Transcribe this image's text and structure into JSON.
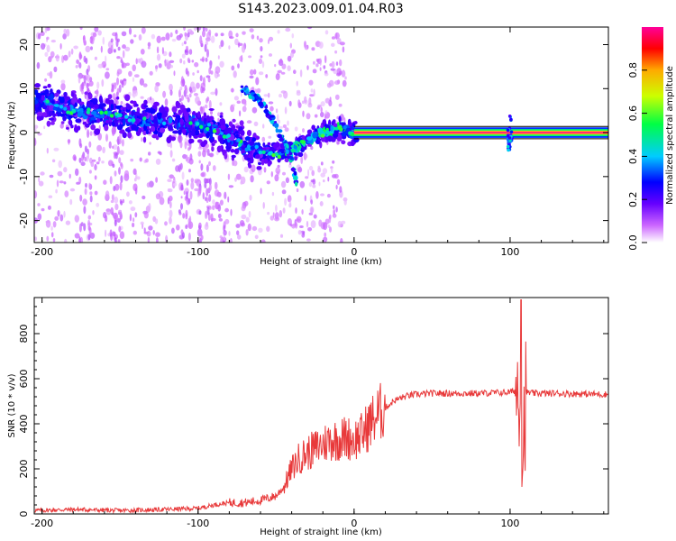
{
  "chart_data": [
    {
      "type": "heatmap",
      "title": "S143.2023.009.01.04.R03",
      "xlabel": "Height of straight line (km)",
      "ylabel": "Frequency (Hz)",
      "xlim": [
        -205,
        163
      ],
      "ylim": [
        -25,
        24
      ],
      "x_ticks": [
        -200,
        -100,
        0,
        100
      ],
      "y_ticks": [
        20,
        10,
        0,
        -10,
        -20
      ],
      "colorbar": {
        "label": "Normalized spectral amplitude",
        "range": [
          0,
          1
        ],
        "ticks": [
          "0.0",
          "0.2",
          "0.4",
          "0.6",
          "0.8"
        ],
        "tick_values": [
          0,
          0.2,
          0.4,
          0.6,
          0.8
        ]
      },
      "colors": {
        "low": "#f4e6ff",
        "mid": "#6a00ff",
        "high": "#ff2b77",
        "line_core": "#e8284a"
      },
      "features": {
        "main_trace": [
          {
            "x": -200,
            "f": 7
          },
          {
            "x": -180,
            "f": 5
          },
          {
            "x": -160,
            "f": 4
          },
          {
            "x": -140,
            "f": 3
          },
          {
            "x": -120,
            "f": 2.5
          },
          {
            "x": -100,
            "f": 2
          },
          {
            "x": -90,
            "f": 1
          },
          {
            "x": -80,
            "f": -1
          },
          {
            "x": -70,
            "f": -3
          },
          {
            "x": -60,
            "f": -4
          },
          {
            "x": -50,
            "f": -5
          },
          {
            "x": -40,
            "f": -4
          },
          {
            "x": -30,
            "f": -2
          },
          {
            "x": -20,
            "f": 0
          },
          {
            "x": -10,
            "f": 1
          },
          {
            "x": 0,
            "f": 0
          },
          {
            "x": 160,
            "f": 0
          }
        ],
        "branch": [
          {
            "x": -72,
            "f": 10
          },
          {
            "x": -62,
            "f": 8
          },
          {
            "x": -52,
            "f": 3
          },
          {
            "x": -45,
            "f": -2
          },
          {
            "x": -40,
            "f": -6
          },
          {
            "x": -37,
            "f": -11
          }
        ]
      }
    },
    {
      "type": "line",
      "title": "",
      "xlabel": "Height of straight line (km)",
      "ylabel": "SNR (10 * v/v)",
      "xlim": [
        -205,
        163
      ],
      "ylim": [
        0,
        960
      ],
      "x_ticks": [
        -200,
        -100,
        0,
        100
      ],
      "y_ticks": [
        0,
        200,
        400,
        600,
        800
      ],
      "color": "#e8393a",
      "series": [
        {
          "x": [
            -205,
            -180,
            -150,
            -120,
            -100,
            -90,
            -80,
            -70,
            -60,
            -50,
            -45,
            -40,
            -35,
            -30,
            -25,
            -20,
            -15,
            -10,
            -5,
            0,
            5,
            10,
            15,
            20,
            25,
            30,
            35,
            40,
            50,
            60,
            80,
            100,
            104,
            106,
            108,
            110,
            115,
            130,
            163
          ],
          "y": [
            15,
            20,
            15,
            20,
            25,
            40,
            50,
            50,
            60,
            80,
            120,
            200,
            250,
            270,
            290,
            310,
            330,
            330,
            340,
            330,
            350,
            400,
            440,
            470,
            500,
            515,
            525,
            530,
            535,
            535,
            535,
            540,
            550,
            600,
            250,
            540,
            535,
            535,
            530
          ]
        }
      ]
    }
  ]
}
